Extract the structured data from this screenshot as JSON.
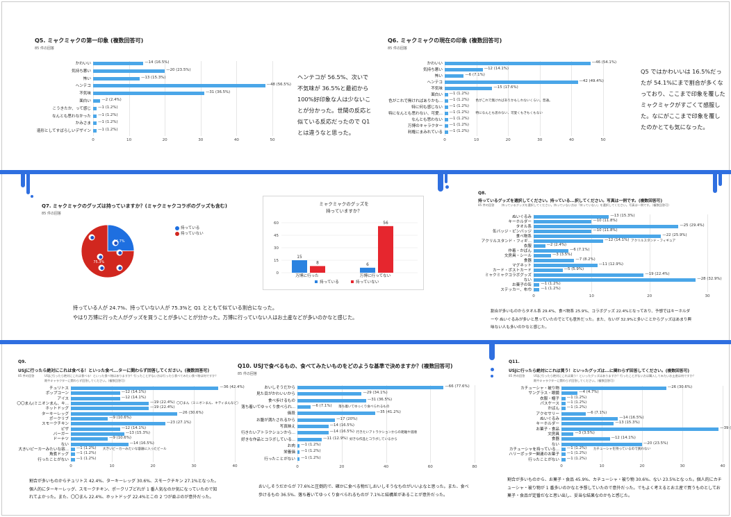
{
  "colors": {
    "accent": "#2f6fe0",
    "bar": "#4aa6e8",
    "red": "#d1271f",
    "blue": "#1e6fe0"
  },
  "q5": {
    "title": "Q5. ミャクミャクの第一印象 (複数回答可)",
    "count": "85 件の回答",
    "note": "ヘンテコが 56.5%、次いで不気味が 36.5%と最初から100%好印象な人は少ないことが分かった。世間の反応と似ている反応だったので Q1 とは違うなと思った。"
  },
  "q6": {
    "title": "Q6. ミャクミャクの現在の印象 (複数回答可)",
    "count": "85 件の回答",
    "note": "Q5 ではかわいいは 16.5%だったが 54.1%にまで割合が多くなっており、ここまで印象を覆したミャクミャクがすごくて感服した。なにがここまで印象を覆したのかとても気になった。"
  },
  "q7": {
    "title": "Q7. ミャクミャクのグッズは持っていますか？(ミャクミャクコラボのグッズも含む)",
    "count": "85 件の回答",
    "note1": "持っている人が 24.7%、持っていない人が 75.3%と Q1 とともて似ている割合になった。",
    "note2": "やはり万博に行った人がグッズを買うことが多いことが分かった。万博に行っていない人はお土産などが多いのかなと感じた。"
  },
  "q8": {
    "title": "Q8.",
    "title2": "持っているグッズを選択してください。持っている...択してください。写真は一例です。(複数回答可)",
    "count": "85 件の回答",
    "sub": "持っているグッズを選択してください。持っていない方は「持っていない」を選択してください。写真は一例です。（複数回答可）",
    "note": "割合が多いものからタオル系 29.4%、食べ物系 25.9%、コラボグッズ 22.4%となっており、予想ではキーホルダーや ぬいぐるみが多いと思っていたのでとても意外だった。また、ないが 32.9%と多いことからグッズはあまり興味ない人も多いのかなと感じた。"
  },
  "q9": {
    "title": "Q9.",
    "title2": "USJに行ったら絶対にこれは食べる！といった食べ...ターに関わらず回答してください。(複数回答可)",
    "count": "85 件の回答",
    "sub": "USJに行ったら絶対にこれは食べる！といった食べ物はありますか？行ったことがない方は行ったら食べてみたい食べ物は何ですか？",
    "sub2": "期やキャラクターに関わらず回答してください。(複数回答可)",
    "note": "割合が多いものからチュリトス 42.4%、ターキーレッグ 30.6%、スモークチキン 27.1%となった。個人的にターキーレッグ、スモークチキン、ポークリブどれが 1 番人気なのか気になっていたので知れてよかった。また、〇〇まん 22.4%、ホットドッグ 22.4%とこの 2 つが並ぶのが意外だった。"
  },
  "q10": {
    "title": "Q10. USJで食べるもの、食べてみたいものをどのような基準で決めますか？(複数回答可)",
    "count": "85 件の回答",
    "note": "おいしそうだからが 77.6%と圧倒的で、確かに食べる物だしおいしそうなものがいいよなと思った。また、食べ歩けるもの 36.5%、落ち着いてゆっくり食べられるものが 7.1%と結構差があることが意外だった。"
  },
  "q11": {
    "title": "Q11.",
    "title2": "USJに行ったら絶対にこれは買う！といったグッズは...に関わらず回答してください。(複数回答可)",
    "count": "85 件の回答",
    "sub": "USJに行ったら絶対にこれは買う！といったグッズはありますか？行ったことがない方は購入してみたいお土産は何ですか？",
    "sub2": "期やキャラクターに関わらず回答してください。(複数回答可)",
    "note": "割合が多いものから、お菓子・食品 45.9%、カチューシャ・被り物 30.6%、ない 23.5%となった。個人的にカチューシャ・被り物が 1 番多いのかなと予想していたので意外だった。でもよく考えるとお土産で買うものとしてお菓子・食品が定番だなと思い出し、妥当な結果なのかもと感じた。"
  },
  "chart_data": [
    {
      "id": "q5",
      "type": "bar",
      "orientation": "horizontal",
      "title": "Q5. ミャクミャクの第一印象 (複数回答可)",
      "xlim": [
        0,
        50
      ],
      "ticks": [
        "0",
        "10",
        "20",
        "30",
        "40",
        "50"
      ],
      "categories": [
        "かわいい",
        "気持ち悪い",
        "怖い",
        "ヘンテコ",
        "不気味",
        "面白い",
        "こうきたか、って感じ",
        "なんとも思わなかった",
        "かみさま",
        "造形としてすばらしいデザイン"
      ],
      "values": [
        14,
        20,
        13,
        48,
        31,
        2,
        1,
        1,
        1,
        1
      ],
      "labels": [
        "14 (16.5%)",
        "20 (23.5%)",
        "13 (15.3%)",
        "48 (56.5%)",
        "31 (36.5%)",
        "2 (2.4%)",
        "1 (1.2%)",
        "1 (1.2%)",
        "1 (1.2%)",
        "1 (1.2%)"
      ],
      "annotations": [
        "",
        "",
        "",
        "",
        "",
        "",
        "",
        "",
        "",
        ""
      ]
    },
    {
      "id": "q6",
      "type": "bar",
      "orientation": "horizontal",
      "title": "Q6. ミャクミャクの現在の印象 (複数回答可)",
      "xlim": [
        0,
        50
      ],
      "ticks": [
        "0",
        "10",
        "20",
        "30",
        "40",
        "50"
      ],
      "categories": [
        "かわいい",
        "気持ち悪い",
        "怖い",
        "ヘンテコ",
        "不気味",
        "面白い",
        "色がこれで無ければありかも...",
        "特に何も感じない",
        "特になんとも思わない、可愛...",
        "なんとも思わない",
        "万博のキャラクター",
        "利権にまみれている"
      ],
      "values": [
        46,
        12,
        6,
        42,
        15,
        1,
        1,
        1,
        1,
        1,
        1,
        1
      ],
      "labels": [
        "46 (54.1%)",
        "12 (14.1%)",
        "6 (7.1%)",
        "42 (49.4%)",
        "15 (17.6%)",
        "1 (1.2%)",
        "1 (1.2%)",
        "1 (1.2%)",
        "1 (1.2%)",
        "1 (1.2%)",
        "1 (1.2%)",
        "1 (1.2%)"
      ],
      "annotations": [
        "",
        "",
        "",
        "",
        "",
        "",
        "色がこれで無ければありかもしれないくらい。普通。",
        "",
        "特になんとも思わない、可愛くもきもくもない",
        "",
        "",
        ""
      ]
    },
    {
      "id": "q7pie",
      "type": "pie",
      "title": "Q7. ミャクミャクのグッズは持っていますか？",
      "categories": [
        "持っている",
        "持っていない"
      ],
      "values": [
        24.7,
        75.3
      ],
      "labels": [
        "24.7%",
        "75.3%"
      ]
    },
    {
      "id": "q7bar",
      "type": "bar",
      "title": "ミャクミャクのグッズを持っていますか？",
      "ylim": [
        0,
        60
      ],
      "yticks": [
        "0",
        "15",
        "30",
        "45",
        "60"
      ],
      "categories": [
        "万博に行った",
        "万博に行ってない"
      ],
      "series": [
        {
          "name": "持っている",
          "values": [
            15,
            6
          ]
        },
        {
          "name": "持っていない",
          "values": [
            8,
            56
          ]
        }
      ]
    },
    {
      "id": "q8",
      "type": "bar",
      "orientation": "horizontal",
      "title": "持っているグッズを選択してください。",
      "xlim": [
        0,
        30
      ],
      "ticks": [
        "0",
        "10",
        "20",
        "30"
      ],
      "categories": [
        "ぬいぐるみ",
        "キーホルダー",
        "タオル系",
        "缶バッジ・ピンバッジ",
        "食べ物系",
        "アクリルスタンド・フィギ...",
        "衣服",
        "作着・かばん",
        "文房具・シール",
        "食器",
        "マグネット",
        "カード・ポストカード",
        "ミャクミャクコラボグッズ",
        "ない",
        "お菓子の缶",
        "ステッカー、布巾"
      ],
      "values": [
        13,
        10,
        25,
        10,
        22,
        12,
        2,
        6,
        3,
        7,
        11,
        5,
        19,
        28,
        1,
        1
      ],
      "labels": [
        "13 (15.3%)",
        "10 (11.8%)",
        "25 (29.4%)",
        "10 (11.8%)",
        "22 (25.9%)",
        "12 (14.1%)",
        "2 (2.4%)",
        "6 (7.1%)",
        "3 (3.5%)",
        "7 (8.2%)",
        "11 (12.9%)",
        "5 (5.9%)",
        "19 (22.4%)",
        "28 (32.9%)",
        "1 (1.2%)",
        "1 (1.2%)"
      ],
      "annotations": [
        "",
        "",
        "",
        "",
        "",
        "アクリルスタンド・フィギュア",
        "",
        "",
        "",
        "",
        "",
        "",
        "",
        "",
        "",
        ""
      ]
    },
    {
      "id": "q9",
      "type": "bar",
      "orientation": "horizontal",
      "title": "Q9. USJに行ったら絶対にこれは食べる！",
      "xlim": [
        0,
        40
      ],
      "ticks": [
        "0",
        "10",
        "20",
        "30",
        "40"
      ],
      "categories": [
        "チュリトス",
        "ポップコーン",
        "アイス",
        "〇〇まん(ミニオンまん、キ...",
        "ホットドッグ",
        "ターキーレッグ",
        "ポークリブ",
        "スモークチキン",
        "ピザ",
        "バーガー",
        "ドーナツ",
        "ない",
        "大きいピーカーみたいな容...",
        "角煮ドッグ",
        "行ったことがない"
      ],
      "values": [
        36,
        12,
        12,
        19,
        19,
        26,
        9,
        23,
        12,
        13,
        9,
        14,
        1,
        1,
        1
      ],
      "labels": [
        "36 (42.4%)",
        "12 (14.1%)",
        "12 (14.1%)",
        "19 (22.4%)",
        "19 (22.4%)",
        "26 (30.6%)",
        "9 (10.6%)",
        "23 (27.1%)",
        "12 (14.1%)",
        "13 (15.3%)",
        "9 (10.6%)",
        "14 (16.5%)",
        "1 (1.2%)",
        "1 (1.2%)",
        "1 (1.2%)"
      ],
      "annotations": [
        "",
        "",
        "",
        "〇〇まん（ミニオンまん、キティまんなど）",
        "",
        "",
        "",
        "",
        "",
        "",
        "",
        "",
        "大きいビーカーみたいな容器に入ったビール",
        "",
        ""
      ]
    },
    {
      "id": "q10",
      "type": "bar",
      "orientation": "horizontal",
      "title": "Q10. USJで食べるもの、食べてみたいものをどのような基準で決めますか？",
      "xlim": [
        0,
        80
      ],
      "ticks": [
        "0",
        "20",
        "40",
        "60",
        "80"
      ],
      "categories": [
        "おいしそうだから",
        "見た目がかわいいから",
        "食べ歩けるもの",
        "落ち着いてゆっくり食べられ...",
        "価段",
        "お腹が満たされるから",
        "写真映え",
        "行きたいアトラクションから...",
        "好きな作品とコラボしている...",
        "お肉",
        "栄養価",
        "行ったことがない"
      ],
      "values": [
        66,
        29,
        31,
        6,
        35,
        17,
        14,
        14,
        11,
        1,
        1,
        1
      ],
      "labels": [
        "66 (77.6%)",
        "29 (34.1%)",
        "31 (36.5%)",
        "6 (7.1%)",
        "35 (41.2%)",
        "17 (20%)",
        "14 (16.5%)",
        "14 (16.5%)",
        "11 (12.9%)",
        "1 (1.2%)",
        "1 (1.2%)",
        "1 (1.2%)"
      ],
      "annotations": [
        "",
        "",
        "",
        "落ち着いてゆっくり食べられるもの",
        "",
        "",
        "",
        "行きたいアトラクションからの距離や道順",
        "好きな作品とコラボしているから",
        "",
        "",
        ""
      ]
    },
    {
      "id": "q11",
      "type": "bar",
      "orientation": "horizontal",
      "title": "Q11. USJに行ったら絶対にこれは買う！",
      "xlim": [
        0,
        40
      ],
      "ticks": [
        "0",
        "10",
        "20",
        "30",
        "40"
      ],
      "categories": [
        "カチューシャ・被り物",
        "サングラス・眼鏡",
        "衣服・帽子",
        "パスケース",
        "かばん",
        "アクセサリー",
        "ぬいぐるみ",
        "キーホルダー",
        "お菓子・食品",
        "文房具",
        "食器",
        "ない",
        "カチューシャを持っている...",
        "ハリーポッター関連のお菓子",
        "行ったことがない"
      ],
      "values": [
        26,
        4,
        1,
        1,
        1,
        6,
        14,
        13,
        39,
        3,
        12,
        20,
        1,
        1,
        1
      ],
      "labels": [
        "26 (30.6%)",
        "4 (4.7%)",
        "1 (1.2%)",
        "1 (1.2%)",
        "1 (1.2%)",
        "6 (7.1%)",
        "14 (16.5%)",
        "13 (15.3%)",
        "39 (45.9%)",
        "3 (3.5%)",
        "12 (14.1%)",
        "20 (23.5%)",
        "1 (1.2%)",
        "1 (1.2%)",
        "1 (1.2%)"
      ],
      "annotations": [
        "",
        "",
        "",
        "",
        "",
        "",
        "",
        "",
        "",
        "",
        "",
        "",
        "カチューシャを持っているので買わない",
        "",
        ""
      ]
    }
  ]
}
